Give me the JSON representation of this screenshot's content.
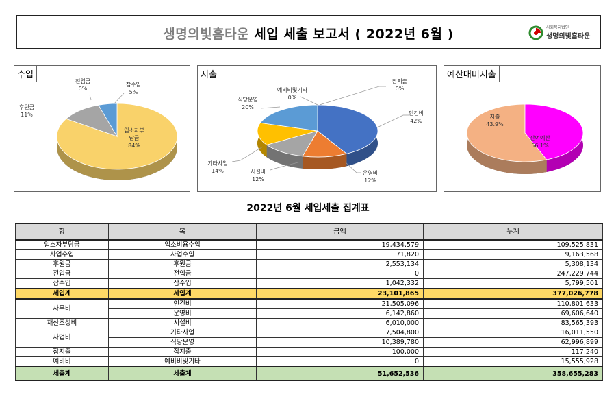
{
  "header": {
    "org_name": "생명의빛홈타운",
    "report_title": "세입 세출 보고서 ( 2022년 6월 )",
    "logo_sub": "사회복지법인",
    "logo_name": "생명의빛홈타운"
  },
  "chart_data": [
    {
      "type": "pie",
      "title": "수입",
      "slices": [
        {
          "label": "입소자부담금",
          "pct": "84%",
          "value": 84,
          "color": "#f9d26a"
        },
        {
          "label": "후원금",
          "pct": "11%",
          "value": 11,
          "color": "#a5a5a5"
        },
        {
          "label": "전입금",
          "pct": "0%",
          "value": 0,
          "color": "#f2a36a"
        },
        {
          "label": "잡수입",
          "pct": "5%",
          "value": 5,
          "color": "#5b9bd5"
        }
      ]
    },
    {
      "type": "pie",
      "title": "지출",
      "slices": [
        {
          "label": "인건비",
          "pct": "42%",
          "value": 42,
          "color": "#4472c4"
        },
        {
          "label": "운영비",
          "pct": "12%",
          "value": 12,
          "color": "#ed7d31"
        },
        {
          "label": "시설비",
          "pct": "12%",
          "value": 12,
          "color": "#a5a5a5"
        },
        {
          "label": "기타사업",
          "pct": "14%",
          "value": 14,
          "color": "#ffc000"
        },
        {
          "label": "식당운영",
          "pct": "20%",
          "value": 20,
          "color": "#5b9bd5"
        },
        {
          "label": "예비비및기타",
          "pct": "0%",
          "value": 0,
          "color": "#70ad47"
        },
        {
          "label": "잡지출",
          "pct": "0%",
          "value": 0,
          "color": "#264478"
        }
      ]
    },
    {
      "type": "pie",
      "title": "예산대비지출",
      "slices": [
        {
          "label": "잔여예산",
          "pct": "56.1%",
          "value": 56.1,
          "color": "#f4b183"
        },
        {
          "label": "지출",
          "pct": "43.9%",
          "value": 43.9,
          "color": "#ff00ff"
        }
      ]
    }
  ],
  "table": {
    "title": "2022년 6월 세입세출 집계표",
    "headers": [
      "항",
      "목",
      "금액",
      "누계"
    ],
    "rows": [
      {
        "hang": "입소자부담금",
        "mok": "입소비용수입",
        "amount": "19,434,579",
        "total": "109,525,831"
      },
      {
        "hang": "사업수입",
        "mok": "사업수입",
        "amount": "71,820",
        "total": "9,163,568"
      },
      {
        "hang": "후원금",
        "mok": "후원금",
        "amount": "2,553,134",
        "total": "5,308,134"
      },
      {
        "hang": "전입금",
        "mok": "전입금",
        "amount": "0",
        "total": "247,229,744"
      },
      {
        "hang": "잡수입",
        "mok": "잡수입",
        "amount": "1,042,332",
        "total": "5,799,501"
      },
      {
        "hang": "세입계",
        "mok": "세입계",
        "amount": "23,101,865",
        "total": "377,026,778"
      },
      {
        "hang": "사무비",
        "mok": "인건비",
        "amount": "21,505,096",
        "total": "110,801,633"
      },
      {
        "hang": "",
        "mok": "운영비",
        "amount": "6,142,860",
        "total": "69,606,640"
      },
      {
        "hang": "재산조성비",
        "mok": "시설비",
        "amount": "6,010,000",
        "total": "83,565,393"
      },
      {
        "hang": "사업비",
        "mok": "기타사업",
        "amount": "7,504,800",
        "total": "16,011,550"
      },
      {
        "hang": "",
        "mok": "식당운영",
        "amount": "10,389,780",
        "total": "62,996,899"
      },
      {
        "hang": "잡지출",
        "mok": "잡지출",
        "amount": "100,000",
        "total": "117,240"
      },
      {
        "hang": "예비비",
        "mok": "예비비및기타",
        "amount": "0",
        "total": "15,555,928"
      },
      {
        "hang": "세출계",
        "mok": "세출계",
        "amount": "51,652,536",
        "total": "358,655,283"
      }
    ]
  }
}
